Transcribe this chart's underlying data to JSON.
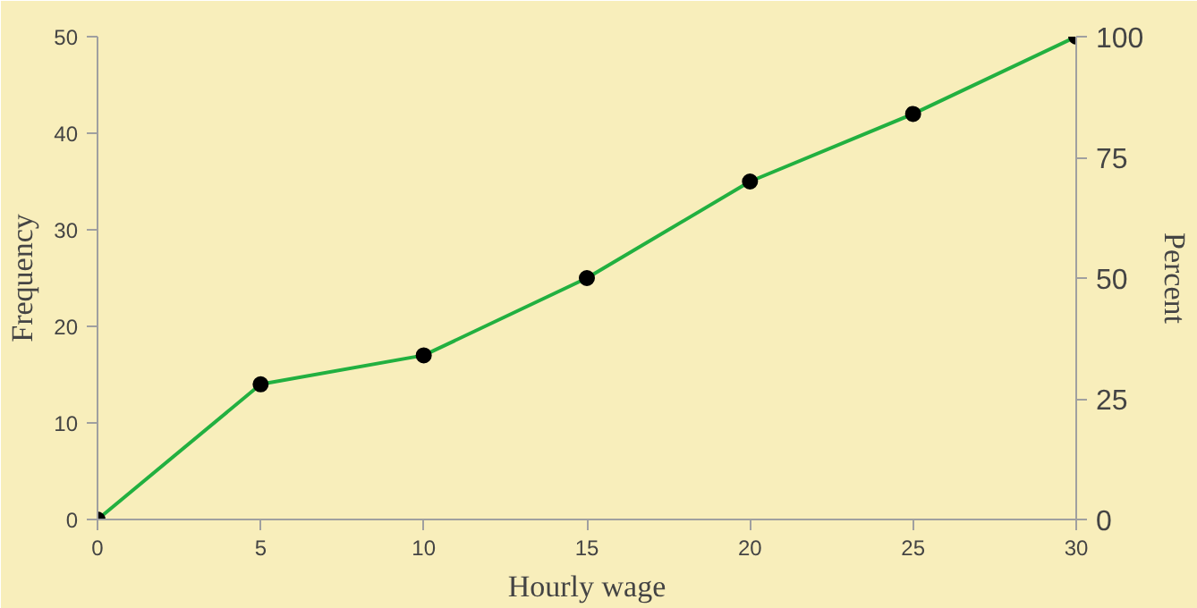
{
  "chart_data": {
    "type": "line",
    "xlabel": "Hourly wage",
    "ylabel": "Frequency",
    "y2label": "Percent",
    "x": [
      0,
      5,
      10,
      15,
      20,
      25,
      30
    ],
    "series": [
      {
        "color": "#22b040",
        "values": [
          0,
          14,
          17,
          25,
          35,
          42,
          50
        ]
      }
    ],
    "xlim": [
      0,
      30
    ],
    "xticks": [
      0,
      5,
      10,
      15,
      20,
      25,
      30
    ],
    "ylim": [
      0,
      50
    ],
    "yticks": [
      0,
      10,
      20,
      30,
      40,
      50
    ],
    "y2lim": [
      0,
      100
    ],
    "y2ticks": [
      0,
      25,
      50,
      75,
      100
    ],
    "grid": false,
    "marker": "circle",
    "line_style": "solid"
  }
}
